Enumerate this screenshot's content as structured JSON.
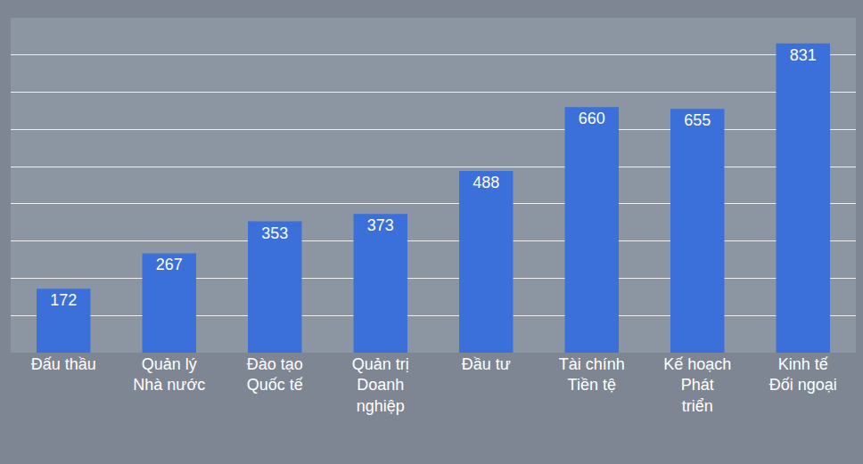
{
  "chart_data": {
    "type": "bar",
    "categories": [
      "Đấu thầu",
      "Quản lý Nhà nước",
      "Đào tạo Quốc tế",
      "Quản trị Doanh nghiệp",
      "Đầu tư",
      "Tài chính Tiền tệ",
      "Kế hoạch Phát triển",
      "Kinh tế Đối ngoại"
    ],
    "values": [
      172,
      267,
      353,
      373,
      488,
      660,
      655,
      831
    ],
    "color": "#3b6fd9",
    "ylim": [
      0,
      900
    ],
    "yticks": [
      0,
      100,
      200,
      300,
      400,
      500,
      600,
      700,
      800,
      900
    ],
    "grid": true,
    "data_labels": true,
    "tick_labels": "x"
  }
}
